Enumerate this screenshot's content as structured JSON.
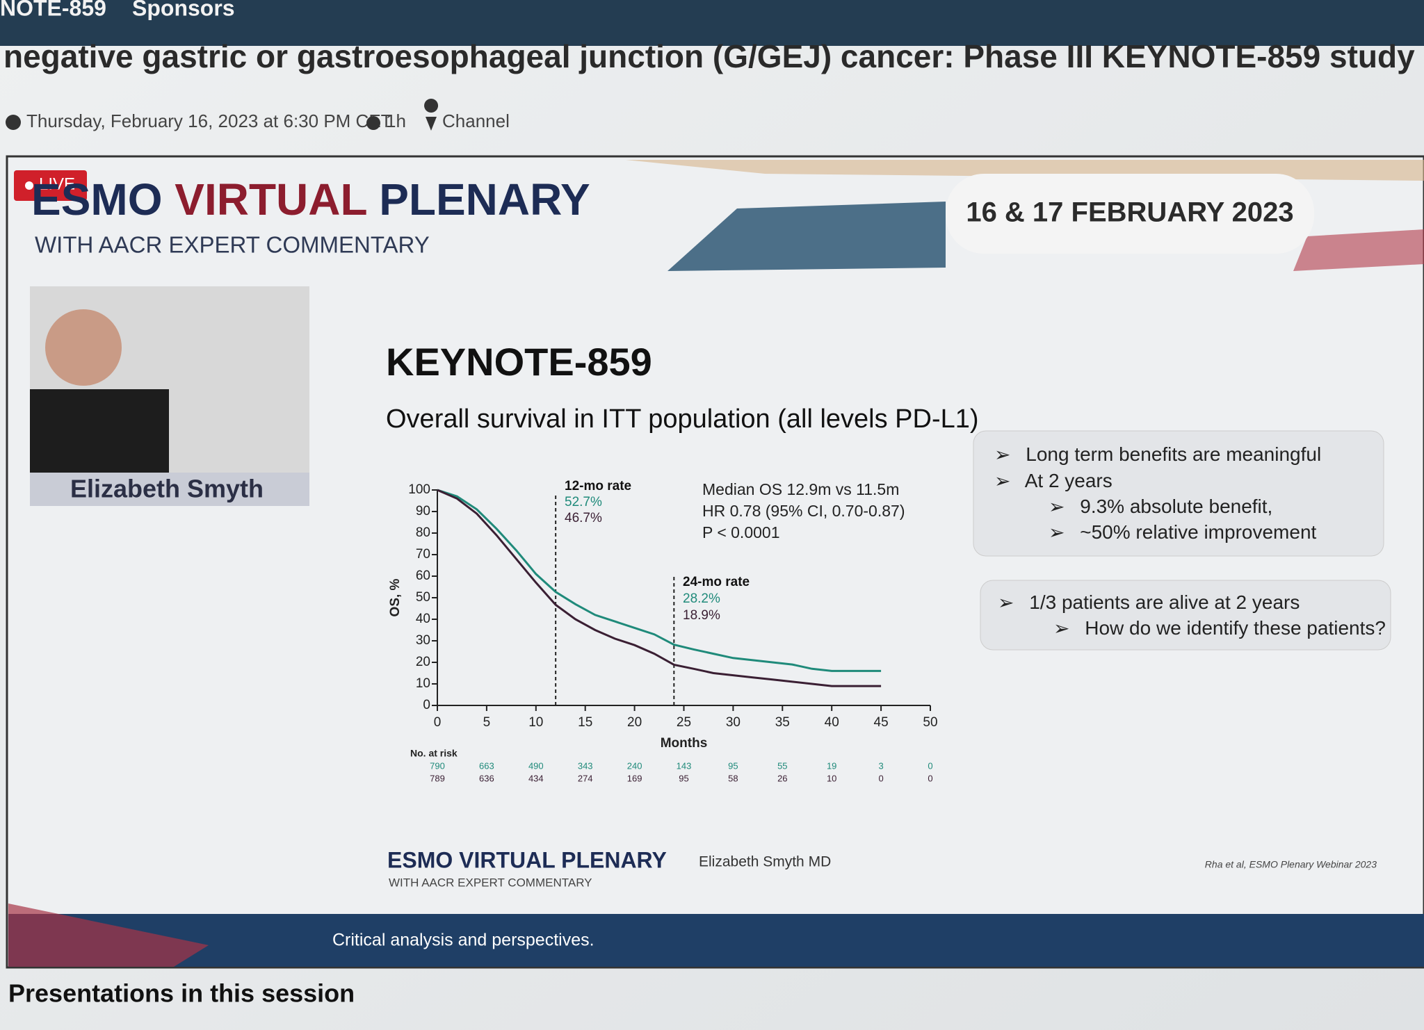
{
  "nav": {
    "items": [
      "NOTE-859",
      "Sponsors"
    ]
  },
  "header": {
    "title": "negative gastric or gastroesophageal junction (G/GEJ) cancer: Phase III KEYNOTE-859 study",
    "date": "Thursday, February 16, 2023 at 6:30 PM CET",
    "duration": "1h",
    "channel": "Channel"
  },
  "video": {
    "live": "LIVE",
    "brand_a": "ESMO",
    "brand_b": "VIRTUAL",
    "brand_c": "PLENARY",
    "brand_sub": "WITH AACR EXPERT COMMENTARY",
    "dates": "16 & 17 FEBRUARY 2023",
    "speaker": "Elizabeth Smyth",
    "box1": {
      "items": [
        "Long term benefits are meaningful",
        "At 2 years"
      ],
      "subitems": [
        "9.3% absolute benefit,",
        "~50% relative improvement"
      ]
    },
    "box2": {
      "items": [
        "1/3 patients are alive at 2 years"
      ],
      "subitems": [
        "How do we identify these patients?"
      ]
    },
    "footer_brand": "ESMO VIRTUAL PLENARY",
    "footer_sub": "WITH AACR EXPERT COMMENTARY",
    "footer_author": "Elizabeth Smyth MD",
    "citation": "Rha et al, ESMO Plenary Webinar 2023",
    "band": "Critical analysis and perspectives."
  },
  "section": {
    "title": "Presentations in this session"
  },
  "chart_data": {
    "type": "line",
    "title": "KEYNOTE-859",
    "subtitle": "Overall survival in ITT population (all levels PD-L1)",
    "x_label": "Months",
    "y_label": "OS, %",
    "x": [
      0,
      2,
      4,
      6,
      8,
      10,
      12,
      14,
      16,
      18,
      20,
      22,
      24,
      26,
      28,
      30,
      32,
      34,
      36,
      38,
      40,
      42,
      45
    ],
    "series": [
      {
        "color": "#1f8a7a",
        "values": [
          100,
          97,
          91,
          82,
          72,
          61,
          52.7,
          47,
          42,
          39,
          36,
          33,
          28.2,
          26,
          24,
          22,
          21,
          20,
          19,
          17,
          16,
          16,
          16
        ]
      },
      {
        "color": "#3a1f33",
        "values": [
          100,
          96,
          89,
          79,
          68,
          57,
          46.7,
          40,
          35,
          31,
          28,
          24,
          18.9,
          17,
          15,
          14,
          13,
          12,
          11,
          10,
          9,
          9,
          9
        ]
      }
    ],
    "xlim": [
      0,
      50
    ],
    "xticks": [
      0,
      5,
      10,
      15,
      20,
      25,
      30,
      35,
      40,
      45,
      50
    ],
    "ylim": [
      0,
      100
    ],
    "yticks": [
      0,
      10,
      20,
      30,
      40,
      50,
      60,
      70,
      80,
      90,
      100
    ],
    "reference_lines_x": [
      12,
      24
    ],
    "annotations": [
      "12-mo rate",
      "52.7%",
      "46.7%",
      "24-mo rate",
      "28.2%",
      "18.9%",
      "Median OS 12.9m vs 11.5m",
      "HR 0.78 (95% CI, 0.70-0.87)",
      "P < 0.0001"
    ],
    "at_risk": {
      "label": "No. at risk",
      "rows": [
        [
          790,
          663,
          490,
          343,
          240,
          143,
          95,
          55,
          19,
          3,
          0
        ],
        [
          789,
          636,
          434,
          274,
          169,
          95,
          58,
          26,
          10,
          0,
          0
        ]
      ]
    }
  }
}
